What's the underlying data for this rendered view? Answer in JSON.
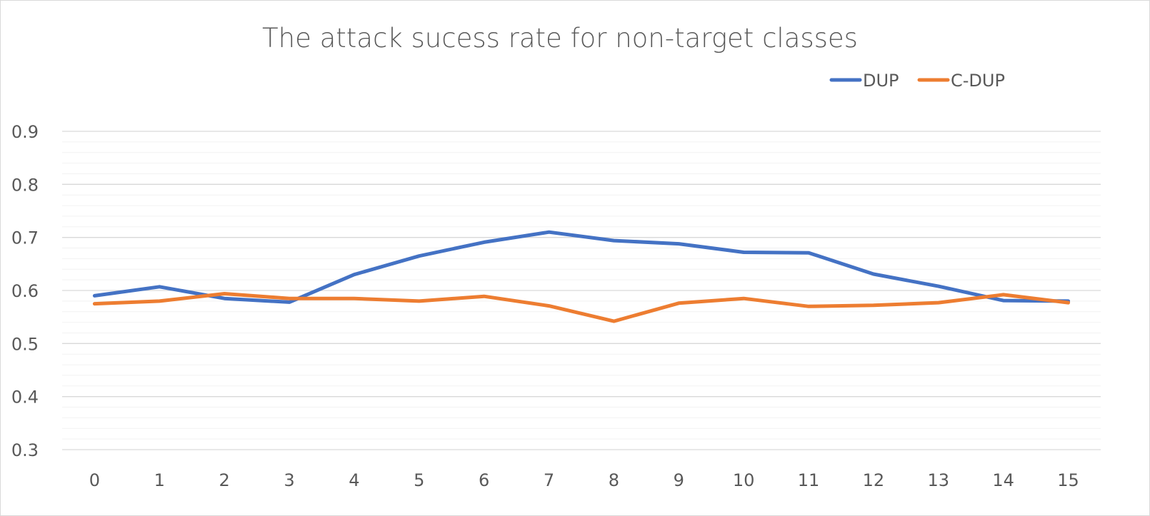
{
  "chart_data": {
    "type": "line",
    "title": "The attack sucess rate for non-target classes",
    "xlabel": "",
    "ylabel": "",
    "categories": [
      "0",
      "1",
      "2",
      "3",
      "4",
      "5",
      "6",
      "7",
      "8",
      "9",
      "10",
      "11",
      "12",
      "13",
      "14",
      "15"
    ],
    "series": [
      {
        "name": "DUP",
        "color": "#4472C4",
        "values": [
          0.59,
          0.607,
          0.585,
          0.578,
          0.63,
          0.665,
          0.691,
          0.71,
          0.694,
          0.688,
          0.672,
          0.671,
          0.631,
          0.608,
          0.581,
          0.58
        ]
      },
      {
        "name": "C-DUP",
        "color": "#ED7D31",
        "values": [
          0.575,
          0.58,
          0.594,
          0.585,
          0.585,
          0.58,
          0.589,
          0.571,
          0.542,
          0.576,
          0.585,
          0.57,
          0.572,
          0.577,
          0.592,
          0.577
        ]
      }
    ],
    "yticks": [
      "0.3",
      "0.4",
      "0.5",
      "0.6",
      "0.7",
      "0.8",
      "0.9"
    ],
    "ylim": [
      0.3,
      0.9
    ],
    "minor_gridline_step": 0.02,
    "grid": true,
    "legend": "top-right",
    "colors": {
      "title": "#595959",
      "tick_text": "#595959",
      "major_grid": "#d9d9d9",
      "minor_grid": "#f2f2f2",
      "axis_line": "#d9d9d9"
    }
  }
}
